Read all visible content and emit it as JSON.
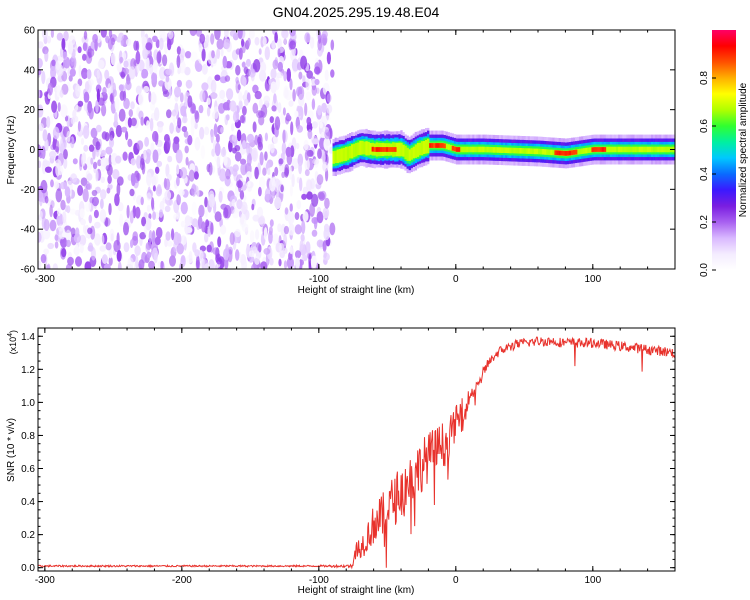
{
  "chart_data": [
    {
      "type": "heatmap",
      "title": "GN04.2025.295.19.48.E04",
      "xlabel": "Height of straight line (km)",
      "ylabel": "Frequency (Hz)",
      "xlim": [
        -305,
        160
      ],
      "ylim": [
        -60,
        60
      ],
      "x_ticks": [
        -300,
        -200,
        -100,
        0,
        100
      ],
      "y_ticks": [
        60,
        40,
        20,
        0,
        -20,
        -40,
        -60
      ],
      "y_tick_labels": [
        "60",
        "40",
        "20",
        "0",
        "-20",
        "-40",
        "-60"
      ],
      "noise_region": {
        "x_range": [
          -305,
          -90
        ],
        "amplitude_range": [
          0.05,
          0.2
        ]
      },
      "signal_band": {
        "x_range": [
          -90,
          160
        ],
        "center_frequency": [
          [
            -90,
            -4
          ],
          [
            -80,
            -2
          ],
          [
            -70,
            1
          ],
          [
            -60,
            0
          ],
          [
            -50,
            0
          ],
          [
            -40,
            0
          ],
          [
            -35,
            -3
          ],
          [
            -28,
            0
          ],
          [
            -20,
            2
          ],
          [
            -10,
            2
          ],
          [
            0,
            0
          ],
          [
            20,
            0
          ],
          [
            60,
            -1
          ],
          [
            80,
            -2
          ],
          [
            100,
            0
          ],
          [
            160,
            0
          ]
        ],
        "peak_segments": [
          [
            -62,
            -45
          ],
          [
            -20,
            -8
          ],
          [
            -4,
            2
          ],
          [
            72,
            88
          ],
          [
            98,
            108
          ]
        ]
      },
      "grid": false
    },
    {
      "type": "line",
      "xlabel": "Height of straight line (km)",
      "ylabel": "SNR (10 * v/v)",
      "ylabel_multiplier": "(x10",
      "ylabel_multiplier_exp": "4",
      "ylabel_multiplier_close": ")",
      "xlim": [
        -305,
        160
      ],
      "ylim": [
        -0.02,
        1.45
      ],
      "x_ticks": [
        -300,
        -200,
        -100,
        0,
        100
      ],
      "y_ticks": [
        0.0,
        0.2,
        0.4,
        0.6,
        0.8,
        1.0,
        1.2,
        1.4
      ],
      "y_tick_labels": [
        "0.0",
        "0.2",
        "0.4",
        "0.6",
        "0.8",
        "1.0",
        "1.2",
        "1.4"
      ],
      "series": [
        {
          "color": "#e8322c",
          "x": [
            -305,
            -100,
            -76,
            -72,
            -68,
            -64,
            -60,
            -56,
            -52,
            -48,
            -44,
            -40,
            -36,
            -32,
            -28,
            -24,
            -20,
            -16,
            -12,
            -8,
            -4,
            0,
            4,
            8,
            12,
            16,
            20,
            24,
            28,
            32,
            40,
            50,
            60,
            70,
            80,
            90,
            100,
            110,
            120,
            130,
            140,
            150,
            160
          ],
          "y": [
            0.01,
            0.01,
            0.01,
            0.12,
            0.14,
            0.2,
            0.26,
            0.28,
            0.33,
            0.38,
            0.42,
            0.46,
            0.5,
            0.55,
            0.59,
            0.63,
            0.67,
            0.7,
            0.73,
            0.75,
            0.8,
            0.88,
            0.94,
            1.0,
            1.06,
            1.12,
            1.18,
            1.24,
            1.28,
            1.31,
            1.34,
            1.36,
            1.37,
            1.37,
            1.36,
            1.36,
            1.36,
            1.35,
            1.34,
            1.33,
            1.32,
            1.31,
            1.3
          ],
          "noise_amplitude": [
            0.005,
            0.005,
            0.01,
            0.06,
            0.08,
            0.1,
            0.12,
            0.14,
            0.14,
            0.15,
            0.16,
            0.16,
            0.16,
            0.16,
            0.16,
            0.16,
            0.15,
            0.15,
            0.14,
            0.14,
            0.12,
            0.1,
            0.08,
            0.06,
            0.05,
            0.04,
            0.04,
            0.03,
            0.03,
            0.03,
            0.03,
            0.03,
            0.03,
            0.03,
            0.03,
            0.03,
            0.03,
            0.03,
            0.03,
            0.03,
            0.03,
            0.03,
            0.03
          ]
        }
      ],
      "grid": false
    }
  ],
  "colorbar": {
    "label": "Normalized spectral amplitude",
    "range": [
      0.0,
      1.0
    ],
    "ticks": [
      0.0,
      0.2,
      0.4,
      0.6,
      0.8
    ],
    "tick_labels": [
      "0.0",
      "0.2",
      "0.4",
      "0.6",
      "0.8"
    ],
    "colors": [
      "#ffffff",
      "#f4ecff",
      "#d9b8ff",
      "#a860f0",
      "#7a1ee0",
      "#3b19ff",
      "#0a6bff",
      "#00c8ff",
      "#00f0a0",
      "#30ff30",
      "#b0ff00",
      "#ffff00",
      "#ffb000",
      "#ff5000",
      "#ff0000",
      "#ff0066"
    ]
  }
}
